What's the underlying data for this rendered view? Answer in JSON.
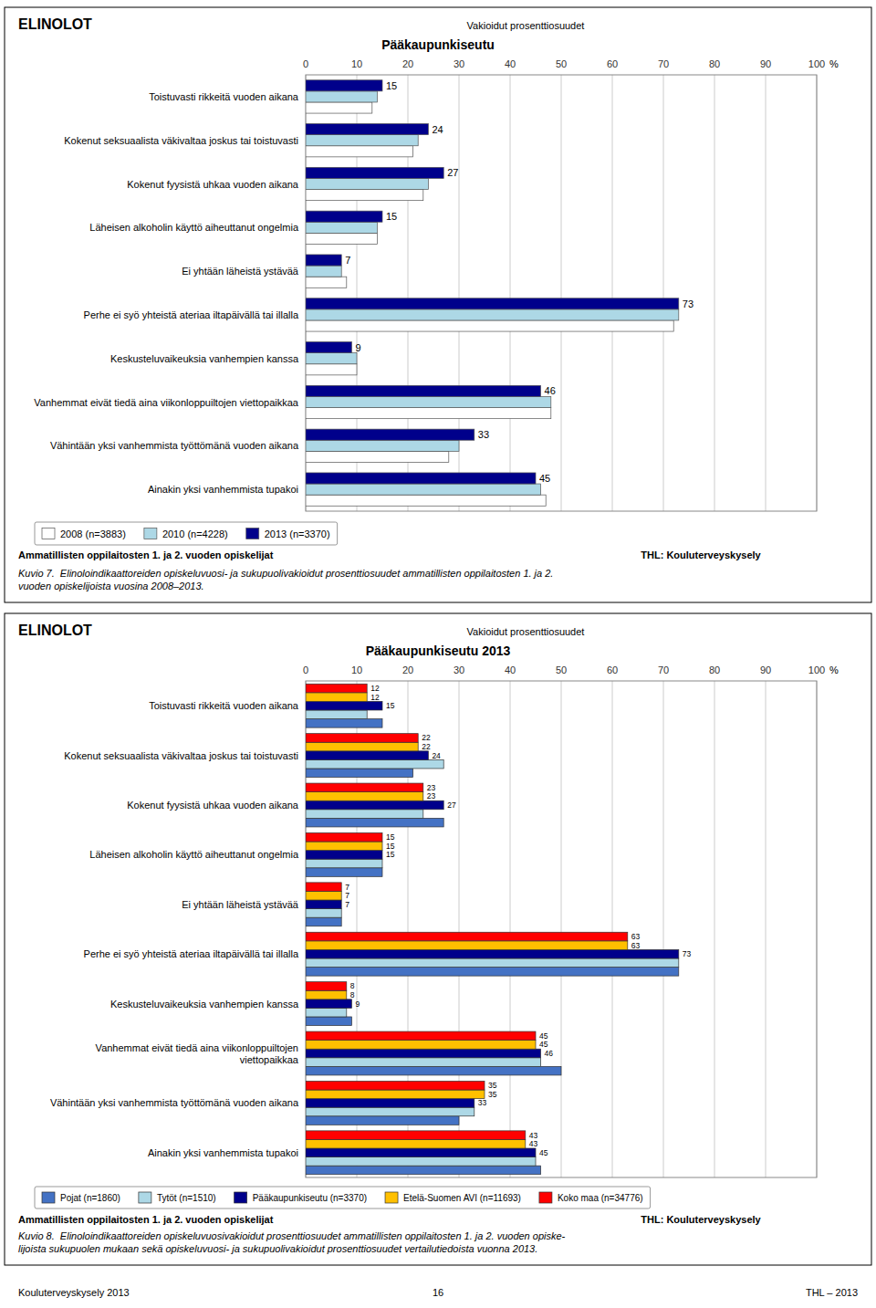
{
  "chart_data": [
    {
      "type": "bar",
      "orientation": "horizontal",
      "title": "Pääkaupunkiseutu",
      "xlabel": "%",
      "annotations": [
        "ELINOLOT",
        "Vakioidut prosenttiosuudet",
        "Ammatillisten oppilaitosten 1. ja 2. vuoden opiskelijat",
        "THL: Kouluterveyskysely",
        "Kuvio 7.  Elinoloindikaattoreiden opiskeluvuosi- ja sukupuolivakioidut prosenttiosuudet ammatillisten oppilaitosten 1. ja 2.\nvuoden opiskelijoista vuosina 2008–2013."
      ],
      "categories": [
        "Ainakin yksi vanhemmista tupakoi",
        "Vähintään yksi vanhemmista työttömänä vuoden aikana",
        "Vanhemmat eivät tiedä aina viikonloppuiltojen viettopaikkaa",
        "Keskusteluvaikeuksia vanhempien kanssa",
        "Perhe ei syö yhteistä ateriaa iltapäivällä tai illalla",
        "Ei yhtään läheistä ystävää",
        "Läheisen alkoholin käyttö aiheuttanut ongelmia",
        "Kokenut fyysistä uhkaa vuoden aikana",
        "Kokenut seksuaalista väkivaltaa joskus tai toistuvasti",
        "Toistuvasti rikkeitä vuoden aikana"
      ],
      "series": [
        {
          "name": "2008 (n=3883)",
          "color": "#ffffff",
          "values": [
            47,
            28,
            48,
            10,
            72,
            8,
            14,
            23,
            21,
            13
          ],
          "data_labels": false
        },
        {
          "name": "2010 (n=4228)",
          "color": "#add8e6",
          "values": [
            46,
            30,
            48,
            10,
            73,
            7,
            14,
            24,
            22,
            14
          ],
          "data_labels": false
        },
        {
          "name": "2013 (n=3370)",
          "color": "#00008b",
          "values": [
            45,
            33,
            46,
            9,
            73,
            7,
            15,
            27,
            24,
            15
          ],
          "data_labels": true
        }
      ],
      "xlim": [
        0,
        100
      ],
      "xticks": [
        0,
        10,
        20,
        30,
        40,
        50,
        60,
        70,
        80,
        90,
        100
      ],
      "grid": true,
      "legend": "bottom"
    },
    {
      "type": "bar",
      "orientation": "horizontal",
      "title": "Pääkaupunkiseutu 2013",
      "xlabel": "%",
      "annotations": [
        "ELINOLOT",
        "Vakioidut prosenttiosuudet",
        "Ammatillisten oppilaitosten 1. ja 2. vuoden opiskelijat",
        "THL: Kouluterveyskysely",
        "Kuvio 8.  Elinoloindikaattoreiden opiskeluvuosivakioidut prosenttiosuudet ammatillisten oppilaitosten 1. ja 2. vuoden opiske-\nlijoista sukupuolen mukaan sekä opiskeluvuosi- ja sukupuolivakioidut prosenttiosuudet vertailutiedoista vuonna 2013."
      ],
      "categories": [
        "Ainakin yksi vanhemmista tupakoi",
        "Vähintään yksi vanhemmista työttömänä vuoden aikana",
        "Vanhemmat eivät tiedä aina viikonloppuiltojen\nviettopaikkaa",
        "Keskusteluvaikeuksia vanhempien kanssa",
        "Perhe ei syö yhteistä ateriaa iltapäivällä tai illalla",
        "Ei yhtään läheistä ystävää",
        "Läheisen alkoholin käyttö aiheuttanut ongelmia",
        "Kokenut fyysistä uhkaa vuoden aikana",
        "Kokenut seksuaalista väkivaltaa joskus tai toistuvasti",
        "Toistuvasti rikkeitä vuoden aikana"
      ],
      "series": [
        {
          "name": "Pojat (n=1860)",
          "color": "#4472c4",
          "values": [
            46,
            30,
            50,
            9,
            73,
            7,
            15,
            27,
            21,
            15
          ],
          "data_labels": false
        },
        {
          "name": "Tytöt (n=1510)",
          "color": "#add8e6",
          "values": [
            45,
            33,
            46,
            8,
            73,
            7,
            15,
            23,
            27,
            12
          ],
          "data_labels": false
        },
        {
          "name": "Pääkaupunkiseutu (n=3370)",
          "color": "#00008b",
          "values": [
            45,
            33,
            46,
            9,
            73,
            7,
            15,
            27,
            24,
            15
          ],
          "data_labels": true
        },
        {
          "name": "Etelä-Suomen AVI (n=11693)",
          "color": "#ffc000",
          "values": [
            43,
            35,
            45,
            8,
            63,
            7,
            15,
            23,
            22,
            12
          ],
          "data_labels": true
        },
        {
          "name": "Koko maa (n=34776)",
          "color": "#ff0000",
          "values": [
            43,
            35,
            45,
            8,
            63,
            7,
            15,
            23,
            22,
            12
          ],
          "data_labels": true
        }
      ],
      "xlim": [
        0,
        100
      ],
      "xticks": [
        0,
        10,
        20,
        30,
        40,
        50,
        60,
        70,
        80,
        90,
        100
      ],
      "grid": true,
      "legend": "bottom"
    }
  ],
  "page_footer": [
    "Kouluterveyskysely 2013",
    "16",
    "THL – 2013"
  ]
}
